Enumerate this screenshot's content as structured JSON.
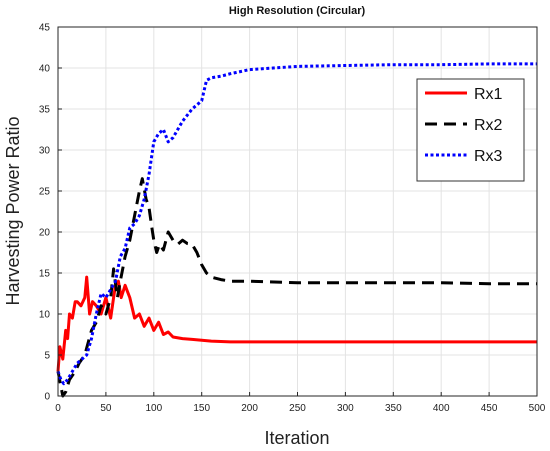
{
  "chart_data": {
    "type": "line",
    "title": "High Resolution (Circular)",
    "xlabel": "Iteration",
    "ylabel": "Harvesting Power Ratio",
    "xlim": [
      0,
      500
    ],
    "ylim": [
      0,
      45
    ],
    "xticks": [
      0,
      50,
      100,
      150,
      200,
      250,
      300,
      350,
      400,
      450,
      500
    ],
    "yticks": [
      0,
      5,
      10,
      15,
      20,
      25,
      30,
      35,
      40,
      45
    ],
    "grid": true,
    "legend_position": "top-right",
    "series": [
      {
        "name": "Rx1",
        "color": "#ff0000",
        "style": "solid",
        "x": [
          0,
          2,
          5,
          8,
          10,
          12,
          15,
          18,
          20,
          24,
          28,
          30,
          33,
          36,
          40,
          45,
          50,
          55,
          58,
          60,
          63,
          66,
          70,
          75,
          80,
          85,
          90,
          95,
          100,
          105,
          110,
          115,
          120,
          130,
          140,
          150,
          160,
          180,
          200,
          250,
          300,
          400,
          500
        ],
        "y": [
          3,
          6,
          4.5,
          8,
          7,
          10,
          9.5,
          11.5,
          11.5,
          11,
          12,
          14.5,
          10,
          11.5,
          11,
          10,
          12,
          9.5,
          12,
          13.5,
          14,
          12,
          13.5,
          12,
          9.5,
          10,
          8.5,
          9.5,
          8,
          9,
          7.5,
          7.8,
          7.2,
          7,
          6.9,
          6.8,
          6.7,
          6.6,
          6.6,
          6.6,
          6.6,
          6.6,
          6.6
        ]
      },
      {
        "name": "Rx2",
        "color": "#000000",
        "style": "dashed",
        "x": [
          0,
          5,
          8,
          12,
          18,
          22,
          28,
          35,
          40,
          45,
          50,
          55,
          58,
          62,
          65,
          70,
          75,
          80,
          85,
          88,
          92,
          95,
          98,
          100,
          103,
          106,
          110,
          115,
          120,
          125,
          130,
          135,
          140,
          145,
          150,
          155,
          160,
          170,
          180,
          200,
          250,
          300,
          350,
          400,
          450,
          500
        ],
        "y": [
          3,
          0,
          0.5,
          2,
          3,
          4,
          5,
          8,
          9,
          11,
          10,
          12,
          15.5,
          12,
          14,
          17,
          19,
          22,
          25,
          26.5,
          24,
          23,
          20.5,
          19,
          17.5,
          18.5,
          17.8,
          20,
          19,
          18.5,
          19,
          18.6,
          18.5,
          17.5,
          16,
          15,
          14.5,
          14.2,
          14,
          14,
          13.8,
          13.8,
          13.8,
          13.8,
          13.7,
          13.7
        ]
      },
      {
        "name": "Rx3",
        "color": "#0000ff",
        "style": "dotted",
        "x": [
          0,
          3,
          6,
          10,
          15,
          20,
          25,
          30,
          35,
          40,
          45,
          50,
          55,
          60,
          65,
          70,
          75,
          80,
          85,
          90,
          95,
          100,
          105,
          110,
          115,
          120,
          130,
          140,
          150,
          155,
          160,
          170,
          180,
          200,
          250,
          300,
          350,
          400,
          450,
          500
        ],
        "y": [
          3,
          2,
          1.5,
          2,
          3,
          4,
          4.5,
          5,
          7,
          10,
          12.5,
          12,
          13,
          14,
          17,
          18,
          20.5,
          21,
          22,
          24,
          27,
          31,
          32,
          32.5,
          31,
          31.5,
          33.5,
          35,
          36,
          38.5,
          38.8,
          39,
          39.3,
          39.8,
          40.2,
          40.3,
          40.4,
          40.4,
          40.5,
          40.5
        ]
      }
    ]
  }
}
